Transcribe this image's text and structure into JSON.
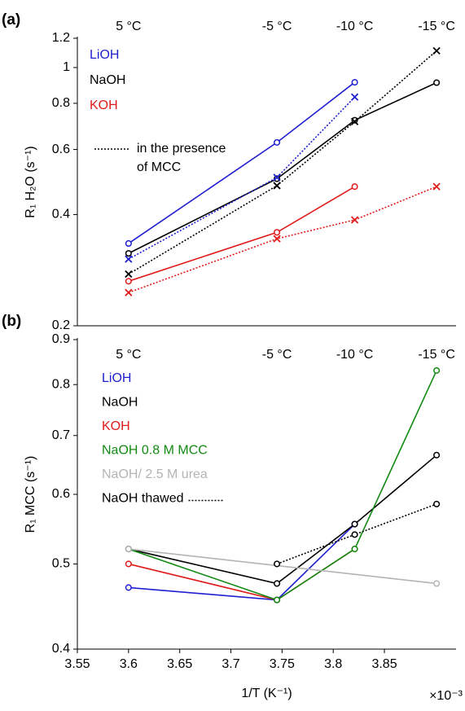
{
  "chart_data": [
    {
      "type": "line",
      "panel_label": "(a)",
      "ylabel": "R₁ H₂O (s⁻¹)",
      "log_y": true,
      "xlim": [
        3.55,
        3.92
      ],
      "ylim": [
        0.2,
        1.2
      ],
      "yticks": [
        0.2,
        0.4,
        0.6,
        0.8,
        1,
        1.2
      ],
      "x": [
        3.6,
        3.745,
        3.821,
        3.901
      ],
      "temperature_labels": [
        "5 °C",
        "-5 °C",
        "-10 °C",
        "-15 °C"
      ],
      "series": [
        {
          "name": "LiOH",
          "color": "#1f1fd0",
          "marker": "o",
          "dashed": false,
          "values": [
            0.334,
            0.627,
            0.912,
            null
          ]
        },
        {
          "name": "NaOH",
          "color": "#000000",
          "marker": "o",
          "dashed": false,
          "values": [
            0.314,
            0.5,
            0.72,
            0.91
          ]
        },
        {
          "name": "KOH",
          "color": "#e01b1b",
          "marker": "o",
          "dashed": false,
          "values": [
            0.264,
            0.358,
            0.476,
            null
          ]
        },
        {
          "color": "#1f1fd0",
          "marker": "x",
          "dashed": true,
          "values": [
            0.303,
            0.504,
            0.832,
            null
          ]
        },
        {
          "color": "#000000",
          "marker": "x",
          "dashed": true,
          "values": [
            0.276,
            0.479,
            0.714,
            1.11
          ]
        },
        {
          "color": "#e01b1b",
          "marker": "x",
          "dashed": true,
          "values": [
            0.246,
            0.344,
            0.387,
            0.476
          ]
        }
      ],
      "dotted_legend": [
        "in the presence",
        "of MCC"
      ]
    },
    {
      "type": "line",
      "panel_label": "(b)",
      "ylabel": "R₁ MCC (s⁻¹)",
      "log_y": true,
      "xlabel": "1/T (K⁻¹)",
      "x_multiplier": "×10⁻³",
      "xlim": [
        3.55,
        3.92
      ],
      "xticks": [
        3.55,
        3.6,
        3.65,
        3.7,
        3.75,
        3.8,
        3.85
      ],
      "ylim": [
        0.4,
        0.9
      ],
      "yticks": [
        0.4,
        0.5,
        0.6,
        0.7,
        0.8,
        0.9
      ],
      "x": [
        3.6,
        3.745,
        3.821,
        3.901
      ],
      "temperature_labels": [
        "5 °C",
        "-5 °C",
        "-10 °C",
        "-15 °C"
      ],
      "series": [
        {
          "name": "LiOH",
          "color": "#1f1fd0",
          "marker": "o",
          "dashed": false,
          "values": [
            0.47,
            0.455,
            0.555,
            null
          ]
        },
        {
          "name": "NaOH",
          "color": "#000000",
          "marker": "o",
          "dashed": false,
          "values": [
            0.52,
            0.475,
            0.555,
            0.665
          ]
        },
        {
          "name": "KOH",
          "color": "#e01b1b",
          "marker": "o",
          "dashed": false,
          "values": [
            0.5,
            0.455,
            0.52,
            null
          ]
        },
        {
          "name": "NaOH 0.8 M MCC",
          "color": "#138a13",
          "marker": "o",
          "dashed": false,
          "values": [
            0.52,
            0.455,
            0.52,
            0.83
          ]
        },
        {
          "name": "NaOH/ 2.5 M urea",
          "color": "#b4b4b4",
          "marker": "o",
          "dashed": false,
          "span_gaps": true,
          "values": [
            0.52,
            null,
            null,
            0.475
          ]
        },
        {
          "name": "NaOH thawed",
          "color": "#000000",
          "marker": "o",
          "dashed": true,
          "values": [
            null,
            0.5,
            0.54,
            0.585
          ]
        }
      ]
    }
  ]
}
